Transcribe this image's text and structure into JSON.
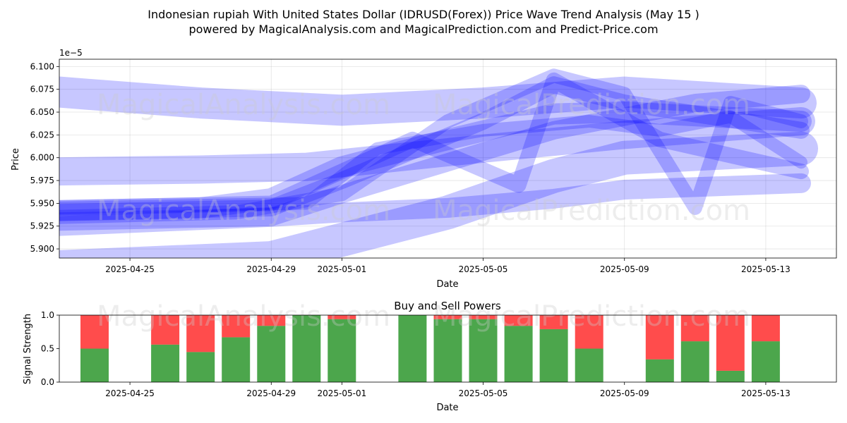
{
  "header": {
    "title_line1": "Indonesian rupiah With United States Dollar (IDRUSD(Forex)) Price Wave Trend Analysis (May 15 )",
    "title_line2": "powered by MagicalAnalysis.com and MagicalPrediction.com and Predict-Price.com"
  },
  "watermarks": [
    "MagicalAnalysis.com",
    "MagicalPrediction.com"
  ],
  "colors": {
    "wave": "#0000ff",
    "buy": "#008000",
    "sell": "#ff0000"
  },
  "chart_data": [
    {
      "type": "line",
      "title": "",
      "xlabel": "Date",
      "ylabel": "Price",
      "y_offset_label": "1e−5",
      "y_scale_note": "values shown are multiplied by 1e-5",
      "xlim": [
        "2025-04-23",
        "2025-05-15"
      ],
      "ylim": [
        5.89,
        6.108
      ],
      "x_ticks": [
        "2025-04-25",
        "2025-04-29",
        "2025-05-01",
        "2025-05-05",
        "2025-05-09",
        "2025-05-13"
      ],
      "y_ticks": [
        "5.900",
        "5.925",
        "5.950",
        "5.975",
        "6.000",
        "6.025",
        "6.050",
        "6.075",
        "6.100"
      ],
      "grid": true,
      "series": [
        {
          "x": [
            "2025-04-23",
            "2025-04-27",
            "2025-05-01",
            "2025-05-05",
            "2025-05-09",
            "2025-05-14"
          ],
          "y": [
            6.072,
            6.06,
            6.052,
            6.06,
            6.072,
            6.06
          ]
        },
        {
          "x": [
            "2025-04-23",
            "2025-04-27",
            "2025-04-30",
            "2025-05-02",
            "2025-05-05",
            "2025-05-09",
            "2025-05-14"
          ],
          "y": [
            5.985,
            5.987,
            5.99,
            5.998,
            6.01,
            6.025,
            6.04
          ]
        },
        {
          "x": [
            "2025-04-23",
            "2025-04-27",
            "2025-04-29",
            "2025-05-01",
            "2025-05-04",
            "2025-05-07",
            "2025-05-09",
            "2025-05-14"
          ],
          "y": [
            5.942,
            5.945,
            5.955,
            5.99,
            6.02,
            6.048,
            6.05,
            6.04
          ]
        },
        {
          "x": [
            "2025-04-23",
            "2025-04-29",
            "2025-05-01",
            "2025-05-04",
            "2025-05-07",
            "2025-05-09",
            "2025-05-11",
            "2025-05-14"
          ],
          "y": [
            5.93,
            5.935,
            5.96,
            5.995,
            6.03,
            6.045,
            6.06,
            6.07
          ]
        },
        {
          "x": [
            "2025-04-23",
            "2025-04-29",
            "2025-05-01",
            "2025-05-05",
            "2025-05-07",
            "2025-05-09",
            "2025-05-14"
          ],
          "y": [
            5.94,
            5.945,
            5.975,
            6.04,
            6.08,
            6.06,
            6.03
          ]
        },
        {
          "x": [
            "2025-04-23",
            "2025-04-29",
            "2025-05-01",
            "2025-05-03",
            "2025-05-06",
            "2025-05-07",
            "2025-05-10",
            "2025-05-14"
          ],
          "y": [
            5.945,
            5.95,
            5.985,
            6.02,
            5.97,
            6.085,
            6.02,
            5.985
          ]
        },
        {
          "x": [
            "2025-04-23",
            "2025-04-28",
            "2025-05-01",
            "2025-05-04",
            "2025-05-07",
            "2025-05-09",
            "2025-05-11",
            "2025-05-12",
            "2025-05-14"
          ],
          "y": [
            5.935,
            5.94,
            5.96,
            6.04,
            6.09,
            6.07,
            5.945,
            6.06,
            6.04
          ]
        },
        {
          "x": [
            "2025-04-23",
            "2025-04-30",
            "2025-05-02",
            "2025-05-05",
            "2025-05-08",
            "2025-05-10",
            "2025-05-12",
            "2025-05-14"
          ],
          "y": [
            5.945,
            5.95,
            6.01,
            6.03,
            6.04,
            6.03,
            6.045,
            5.995
          ]
        },
        {
          "x": [
            "2025-04-23",
            "2025-04-26",
            "2025-04-29",
            "2025-05-01",
            "2025-05-04",
            "2025-05-07",
            "2025-05-09",
            "2025-05-14"
          ],
          "y": [
            5.925,
            5.93,
            5.935,
            5.94,
            5.945,
            5.955,
            5.965,
            5.972
          ]
        },
        {
          "x": [
            "2025-04-23",
            "2025-04-29",
            "2025-05-01",
            "2025-05-04",
            "2025-05-07",
            "2025-05-09",
            "2025-05-14"
          ],
          "y": [
            5.88,
            5.89,
            5.91,
            5.94,
            5.98,
            6.0,
            6.01
          ]
        }
      ]
    },
    {
      "type": "bar",
      "title": "Buy and Sell Powers",
      "xlabel": "Date",
      "ylabel": "Signal Strength",
      "xlim": [
        "2025-04-23",
        "2025-05-15"
      ],
      "ylim": [
        0,
        1
      ],
      "x_ticks": [
        "2025-04-25",
        "2025-04-29",
        "2025-05-01",
        "2025-05-05",
        "2025-05-09",
        "2025-05-13"
      ],
      "y_ticks": [
        "0.0",
        "0.5",
        "1.0"
      ],
      "categories": [
        "2025-04-24",
        "2025-04-26",
        "2025-04-27",
        "2025-04-28",
        "2025-04-29",
        "2025-04-30",
        "2025-05-01",
        "2025-05-03",
        "2025-05-04",
        "2025-05-05",
        "2025-05-06",
        "2025-05-07",
        "2025-05-08",
        "2025-05-10",
        "2025-05-11",
        "2025-05-12",
        "2025-05-13"
      ],
      "series": [
        {
          "name": "Buy",
          "values": [
            0.5,
            0.56,
            0.45,
            0.67,
            0.84,
            1.0,
            0.94,
            1.0,
            0.94,
            0.94,
            0.84,
            0.79,
            0.5,
            0.34,
            0.61,
            0.17,
            0.61
          ]
        },
        {
          "name": "Sell",
          "values": [
            0.5,
            0.44,
            0.55,
            0.33,
            0.16,
            0.0,
            0.06,
            0.0,
            0.06,
            0.06,
            0.16,
            0.21,
            0.5,
            0.66,
            0.39,
            0.83,
            0.39
          ]
        }
      ]
    }
  ]
}
